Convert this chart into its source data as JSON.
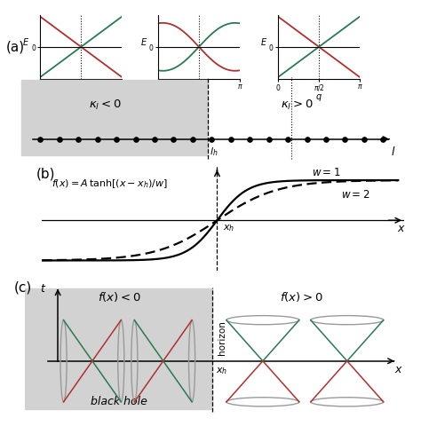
{
  "panel_a_label": "(a)",
  "panel_b_label": "(b)",
  "panel_c_label": "(c)",
  "bg_gray": "#d2d2d2",
  "green_color": "#2a7a50",
  "red_color": "#b03030",
  "gray_cone": "#999999",
  "kl_neg": "$\\kappa_l < 0$",
  "kl_pos": "$\\kappa_l > 0$",
  "lh_label": "$l_h$",
  "l_label": "$l$",
  "fx_formula": "$f(x) = A\\,\\tanh[(x-x_h)/w]$",
  "w1_label": "$w=1$",
  "w2_label": "$w=2$",
  "xh_label": "$x_h$",
  "x_label": "$x$",
  "t_label": "$t$",
  "fx_neg": "$f(x)<0$",
  "fx_pos": "$f(x)>0$",
  "horizon_label": "horizon",
  "bh_label": "black hole",
  "pi_half": "$\\pi/2$",
  "pi_label": "$\\pi$",
  "zero_label": "$0$",
  "E_label": "$E$",
  "q_label": "$q$"
}
